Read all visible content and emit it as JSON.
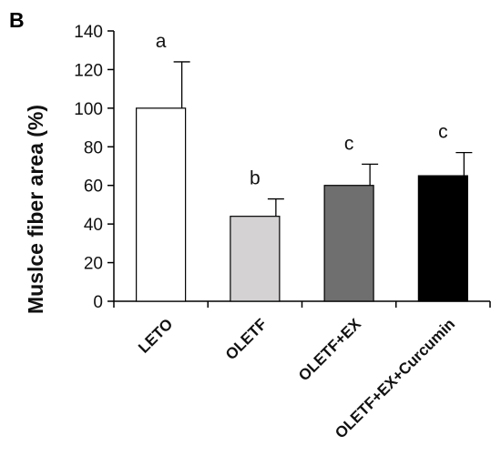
{
  "panel_label": "B",
  "chart_data": {
    "type": "bar",
    "categories": [
      "LETO",
      "OLETF",
      "OLETF+EX",
      "OLETF+EX+Curcumin"
    ],
    "values": [
      100,
      44,
      60,
      65
    ],
    "errors": [
      24,
      9,
      11,
      12
    ],
    "significance": [
      "a",
      "b",
      "c",
      "c"
    ],
    "bar_colors": [
      "#ffffff",
      "#d4d2d3",
      "#6f6f6f",
      "#000000"
    ],
    "ylabel": "Muslce fiber area (%)",
    "ylim": [
      0,
      140
    ],
    "yticks": [
      0,
      20,
      40,
      60,
      80,
      100,
      120,
      140
    ],
    "ytick_labels": [
      "0",
      "20",
      "40",
      "60",
      "80",
      "100",
      "120",
      "140"
    ]
  }
}
